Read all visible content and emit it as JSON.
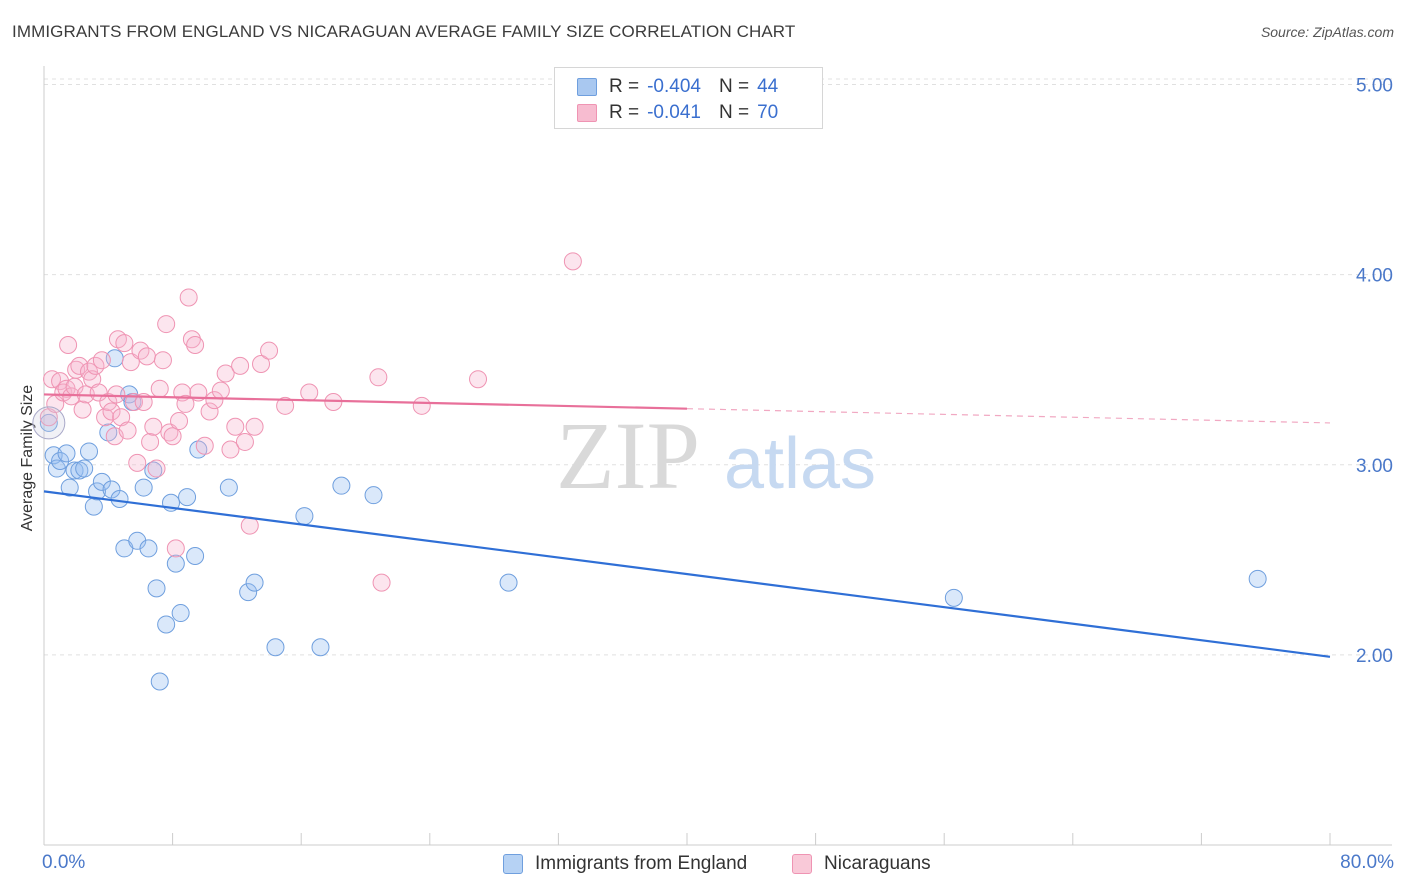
{
  "title": "IMMIGRANTS FROM ENGLAND VS NICARAGUAN AVERAGE FAMILY SIZE CORRELATION CHART",
  "source": "Source: ZipAtlas.com",
  "watermark": {
    "zip": "ZIP",
    "atlas": "atlas"
  },
  "legend": {
    "r_label": "R =",
    "n_label": "N =",
    "rows": [
      {
        "r": "-0.404",
        "n": "44",
        "color": "#a9c8f0",
        "border": "#6f9fde"
      },
      {
        "r": "-0.041",
        "n": "70",
        "color": "#f7bcd0",
        "border": "#ef94b3"
      }
    ]
  },
  "bottom_legend": [
    {
      "label": "Immigrants from England",
      "color": "#b6d2f4",
      "border": "#6f9fde"
    },
    {
      "label": "Nicaraguans",
      "color": "#f9c9d8",
      "border": "#ef94b3"
    }
  ],
  "chart_data": {
    "type": "scatter",
    "title": "IMMIGRANTS FROM ENGLAND VS NICARAGUAN AVERAGE FAMILY SIZE CORRELATION CHART",
    "xlabel": "",
    "ylabel": "Average Family Size",
    "xlim": [
      0,
      80
    ],
    "ylim": [
      1.0,
      5.15
    ],
    "x_tick_labels": {
      "min": "0.0%",
      "max": "80.0%"
    },
    "y_ticks": [
      {
        "value": 5.0,
        "label": "5.00"
      },
      {
        "value": 4.0,
        "label": "4.00"
      },
      {
        "value": 3.0,
        "label": "3.00"
      },
      {
        "value": 2.0,
        "label": "2.00"
      }
    ],
    "grid": "horizontal dashed",
    "series": [
      {
        "name": "Immigrants from England",
        "color": "#6f9fde",
        "fill": "rgba(150,190,240,0.35)",
        "trend": {
          "x0": 0,
          "y0": 2.86,
          "x1": 80,
          "y1": 1.99,
          "solid_to": 80
        },
        "points": [
          [
            0.3,
            3.22
          ],
          [
            0.6,
            3.05
          ],
          [
            0.8,
            2.98
          ],
          [
            1.0,
            3.02
          ],
          [
            1.4,
            3.06
          ],
          [
            1.6,
            2.88
          ],
          [
            1.9,
            2.97
          ],
          [
            2.2,
            2.97
          ],
          [
            2.5,
            2.98
          ],
          [
            2.8,
            3.07
          ],
          [
            3.1,
            2.78
          ],
          [
            3.3,
            2.86
          ],
          [
            3.6,
            2.91
          ],
          [
            4.0,
            3.17
          ],
          [
            4.2,
            2.87
          ],
          [
            4.4,
            3.56
          ],
          [
            4.7,
            2.82
          ],
          [
            5.0,
            2.56
          ],
          [
            5.3,
            3.37
          ],
          [
            5.5,
            3.33
          ],
          [
            5.8,
            2.6
          ],
          [
            6.2,
            2.88
          ],
          [
            6.5,
            2.56
          ],
          [
            6.8,
            2.97
          ],
          [
            7.0,
            2.35
          ],
          [
            7.2,
            1.86
          ],
          [
            7.6,
            2.16
          ],
          [
            7.9,
            2.8
          ],
          [
            8.2,
            2.48
          ],
          [
            8.5,
            2.22
          ],
          [
            8.9,
            2.83
          ],
          [
            9.4,
            2.52
          ],
          [
            9.6,
            3.08
          ],
          [
            11.5,
            2.88
          ],
          [
            12.7,
            2.33
          ],
          [
            13.1,
            2.38
          ],
          [
            14.4,
            2.04
          ],
          [
            16.2,
            2.73
          ],
          [
            17.2,
            2.04
          ],
          [
            18.5,
            2.89
          ],
          [
            20.5,
            2.84
          ],
          [
            28.9,
            2.38
          ],
          [
            56.6,
            2.3
          ],
          [
            75.5,
            2.4
          ]
        ]
      },
      {
        "name": "Nicaraguans",
        "color": "#ef94b3",
        "fill": "rgba(247,180,205,0.35)",
        "trend": {
          "x0": 0,
          "y0": 3.37,
          "x1": 80,
          "y1": 3.22,
          "solid_to": 40
        },
        "points": [
          [
            0.3,
            3.25
          ],
          [
            0.5,
            3.45
          ],
          [
            0.7,
            3.32
          ],
          [
            1.0,
            3.44
          ],
          [
            1.2,
            3.38
          ],
          [
            1.4,
            3.4
          ],
          [
            1.5,
            3.63
          ],
          [
            1.7,
            3.36
          ],
          [
            1.9,
            3.41
          ],
          [
            2.0,
            3.5
          ],
          [
            2.2,
            3.52
          ],
          [
            2.4,
            3.29
          ],
          [
            2.6,
            3.37
          ],
          [
            2.8,
            3.49
          ],
          [
            3.0,
            3.45
          ],
          [
            3.2,
            3.52
          ],
          [
            3.4,
            3.38
          ],
          [
            3.6,
            3.55
          ],
          [
            3.8,
            3.25
          ],
          [
            4.0,
            3.33
          ],
          [
            4.2,
            3.28
          ],
          [
            4.4,
            3.15
          ],
          [
            4.5,
            3.37
          ],
          [
            4.6,
            3.66
          ],
          [
            4.8,
            3.25
          ],
          [
            5.0,
            3.64
          ],
          [
            5.2,
            3.18
          ],
          [
            5.4,
            3.54
          ],
          [
            5.6,
            3.33
          ],
          [
            5.8,
            3.01
          ],
          [
            6.0,
            3.6
          ],
          [
            6.2,
            3.33
          ],
          [
            6.4,
            3.57
          ],
          [
            6.6,
            3.12
          ],
          [
            6.8,
            3.2
          ],
          [
            7.0,
            2.98
          ],
          [
            7.2,
            3.4
          ],
          [
            7.4,
            3.55
          ],
          [
            7.6,
            3.74
          ],
          [
            7.8,
            3.17
          ],
          [
            8.0,
            3.15
          ],
          [
            8.2,
            2.56
          ],
          [
            8.4,
            3.23
          ],
          [
            8.6,
            3.38
          ],
          [
            8.8,
            3.32
          ],
          [
            9.0,
            3.88
          ],
          [
            9.2,
            3.66
          ],
          [
            9.4,
            3.63
          ],
          [
            9.6,
            3.38
          ],
          [
            10.0,
            3.1
          ],
          [
            10.3,
            3.28
          ],
          [
            10.6,
            3.34
          ],
          [
            11.0,
            3.39
          ],
          [
            11.3,
            3.48
          ],
          [
            11.6,
            3.08
          ],
          [
            11.9,
            3.2
          ],
          [
            12.2,
            3.52
          ],
          [
            12.5,
            3.12
          ],
          [
            12.8,
            2.68
          ],
          [
            13.1,
            3.2
          ],
          [
            13.5,
            3.53
          ],
          [
            14.0,
            3.6
          ],
          [
            15.0,
            3.31
          ],
          [
            16.5,
            3.38
          ],
          [
            18.0,
            3.33
          ],
          [
            20.8,
            3.46
          ],
          [
            21.0,
            2.38
          ],
          [
            23.5,
            3.31
          ],
          [
            27.0,
            3.45
          ],
          [
            32.9,
            4.07
          ]
        ]
      }
    ]
  }
}
